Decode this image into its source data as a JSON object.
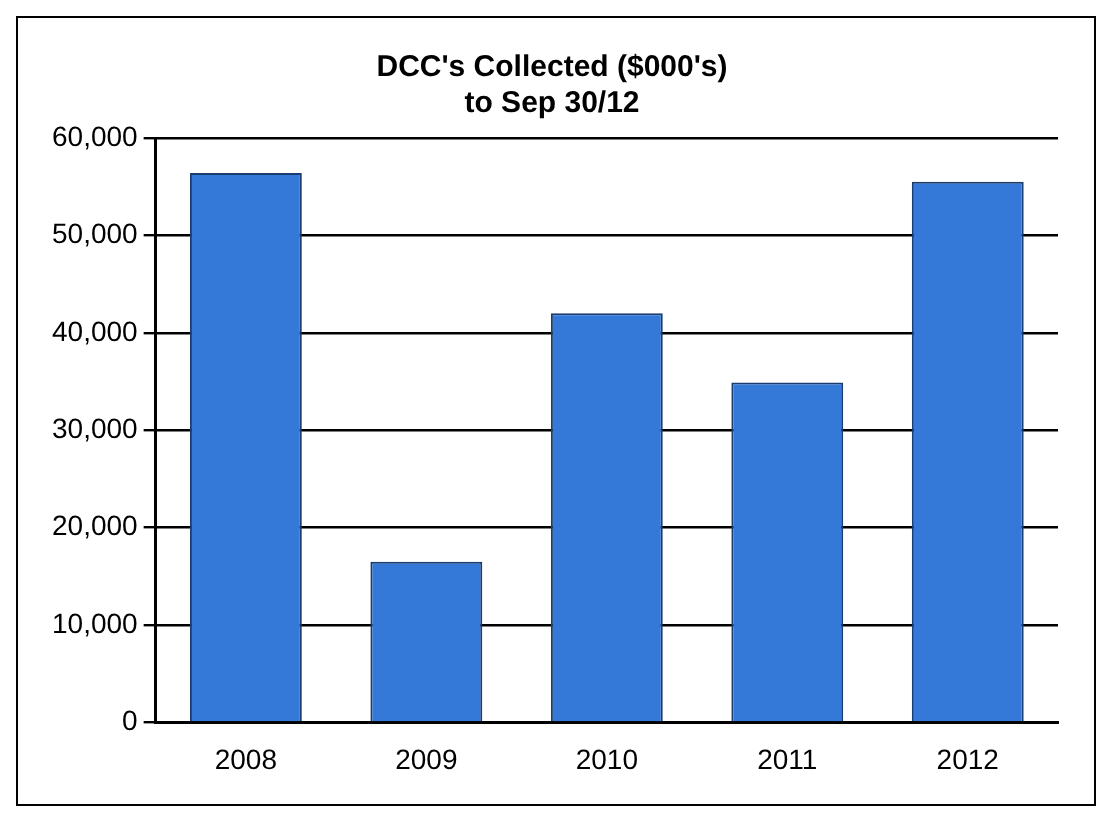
{
  "chart_data": {
    "type": "bar",
    "title": "DCC's Collected ($000's)\nto Sep 30/12",
    "categories": [
      "2008",
      "2009",
      "2010",
      "2011",
      "2012"
    ],
    "values": [
      56400,
      16500,
      42000,
      34900,
      55500
    ],
    "color": "#3579d8",
    "ylim": [
      0,
      60000
    ],
    "yticks": [
      {
        "value": 0,
        "label": "0"
      },
      {
        "value": 10000,
        "label": "10,000"
      },
      {
        "value": 20000,
        "label": "20,000"
      },
      {
        "value": 30000,
        "label": "30,000"
      },
      {
        "value": 40000,
        "label": "40,000"
      },
      {
        "value": 50000,
        "label": "50,000"
      },
      {
        "value": 60000,
        "label": "60,000"
      }
    ],
    "grid": "y",
    "legend": false
  }
}
